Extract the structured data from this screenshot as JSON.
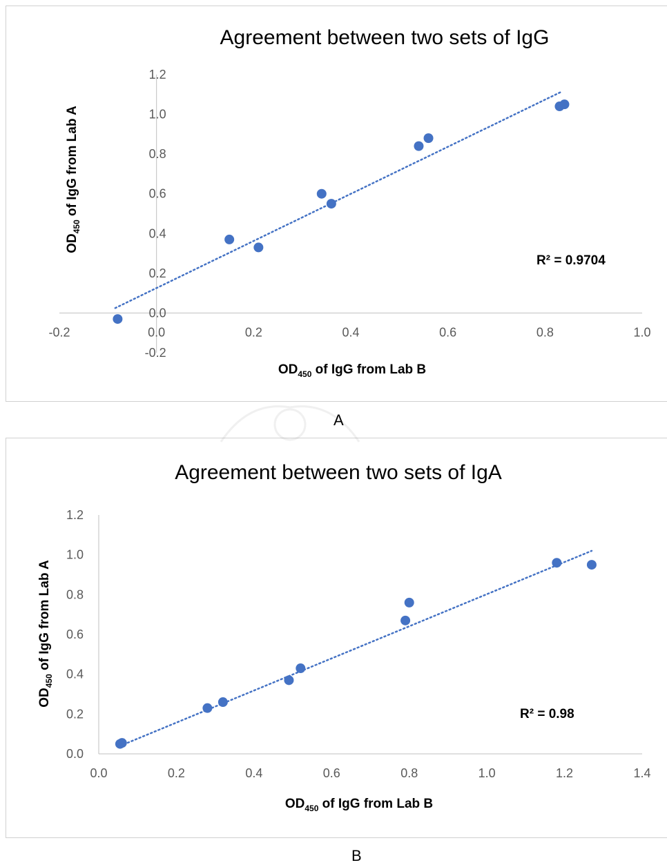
{
  "charts": [
    {
      "type": "scatter",
      "title": "Agreement between two sets of IgG",
      "ylabel": {
        "main": "OD",
        "sub": "450",
        "rest": " of IgG from Lab A"
      },
      "xlabel": {
        "main": "OD",
        "sub": "450",
        "rest": " of IgG from Lab B"
      },
      "r2_label": "R² = 0.9704",
      "panel_label": "A",
      "xlim": [
        -0.2,
        1.0
      ],
      "ylim": [
        -0.2,
        1.2
      ],
      "xticks": [
        -0.2,
        0.0,
        0.2,
        0.4,
        0.6,
        0.8,
        1.0
      ],
      "yticks": [
        -0.2,
        0.0,
        0.2,
        0.4,
        0.6,
        0.8,
        1.0,
        1.2
      ],
      "xtick_labels": [
        "-0.2",
        "0.0",
        "0.2",
        "0.4",
        "0.6",
        "0.8",
        "1.0"
      ],
      "ytick_labels": [
        "-0.2",
        "0.0",
        "0.2",
        "0.4",
        "0.6",
        "0.8",
        "1.0",
        "1.2"
      ],
      "grid": false,
      "trendline": {
        "style": "dotted",
        "x": [
          -0.085,
          0.835
        ],
        "y": [
          0.025,
          1.115
        ]
      },
      "points": [
        {
          "x": -0.08,
          "y": -0.03
        },
        {
          "x": 0.15,
          "y": 0.37
        },
        {
          "x": 0.21,
          "y": 0.33
        },
        {
          "x": 0.34,
          "y": 0.6
        },
        {
          "x": 0.36,
          "y": 0.55
        },
        {
          "x": 0.54,
          "y": 0.84
        },
        {
          "x": 0.56,
          "y": 0.88
        },
        {
          "x": 0.83,
          "y": 1.04
        },
        {
          "x": 0.84,
          "y": 1.05
        }
      ]
    },
    {
      "type": "scatter",
      "title": "Agreement between two sets of IgA",
      "ylabel": {
        "main": "OD",
        "sub": "450",
        "rest": " of IgG from Lab A"
      },
      "xlabel": {
        "main": "OD",
        "sub": "450",
        "rest": " of IgG from Lab B"
      },
      "r2_label": "R² = 0.98",
      "panel_label": "B",
      "xlim": [
        0.0,
        1.4
      ],
      "ylim": [
        0.0,
        1.2
      ],
      "xticks": [
        0.0,
        0.2,
        0.4,
        0.6,
        0.8,
        1.0,
        1.2,
        1.4
      ],
      "yticks": [
        0.0,
        0.2,
        0.4,
        0.6,
        0.8,
        1.0,
        1.2
      ],
      "xtick_labels": [
        "0.0",
        "0.2",
        "0.4",
        "0.6",
        "0.8",
        "1.0",
        "1.2",
        "1.4"
      ],
      "ytick_labels": [
        "0.0",
        "0.2",
        "0.4",
        "0.6",
        "0.8",
        "1.0",
        "1.2"
      ],
      "grid": false,
      "trendline": {
        "style": "dotted",
        "x": [
          0.055,
          1.27
        ],
        "y": [
          0.04,
          1.02
        ]
      },
      "points": [
        {
          "x": 0.055,
          "y": 0.05
        },
        {
          "x": 0.06,
          "y": 0.055
        },
        {
          "x": 0.28,
          "y": 0.23
        },
        {
          "x": 0.32,
          "y": 0.26
        },
        {
          "x": 0.49,
          "y": 0.37
        },
        {
          "x": 0.52,
          "y": 0.43
        },
        {
          "x": 0.79,
          "y": 0.67
        },
        {
          "x": 0.8,
          "y": 0.76
        },
        {
          "x": 1.18,
          "y": 0.96
        },
        {
          "x": 1.27,
          "y": 0.95
        }
      ]
    }
  ],
  "colors": {
    "marker": "#4472c4",
    "trend": "#4472c4",
    "axis": "#bfbfbf",
    "tick_text": "#595959",
    "title_text": "#000000"
  }
}
